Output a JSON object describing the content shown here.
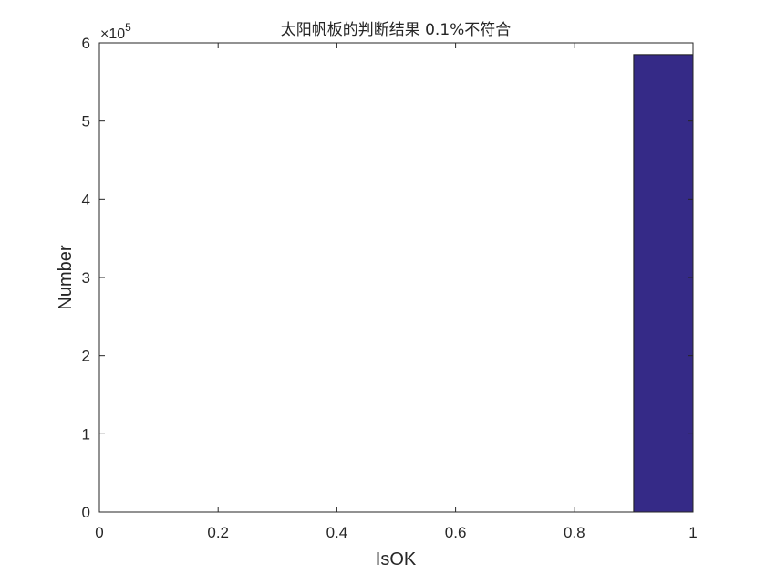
{
  "chart_data": {
    "type": "bar",
    "title": "太阳帆板的判断结果 0.1%不符合",
    "xlabel": "IsOK",
    "ylabel": "Number",
    "xlim": [
      0,
      1
    ],
    "ylim": [
      0,
      600000
    ],
    "x_ticks": [
      0,
      0.2,
      0.4,
      0.6,
      0.8,
      1
    ],
    "x_tick_labels": [
      "0",
      "0.2",
      "0.4",
      "0.6",
      "0.8",
      "1"
    ],
    "y_ticks": [
      0,
      100000,
      200000,
      300000,
      400000,
      500000,
      600000
    ],
    "y_tick_labels": [
      "0",
      "1",
      "2",
      "3",
      "4",
      "5",
      "6"
    ],
    "y_multiplier": {
      "base": "×10",
      "exponent": "5"
    },
    "grid": false,
    "bars": [
      {
        "x_start": 0.9,
        "x_end": 1.0,
        "value": 585000
      }
    ],
    "colors": {
      "bar_fill": "#352a87",
      "bar_edge": "#1a1a1a",
      "axis": "#262626"
    }
  }
}
